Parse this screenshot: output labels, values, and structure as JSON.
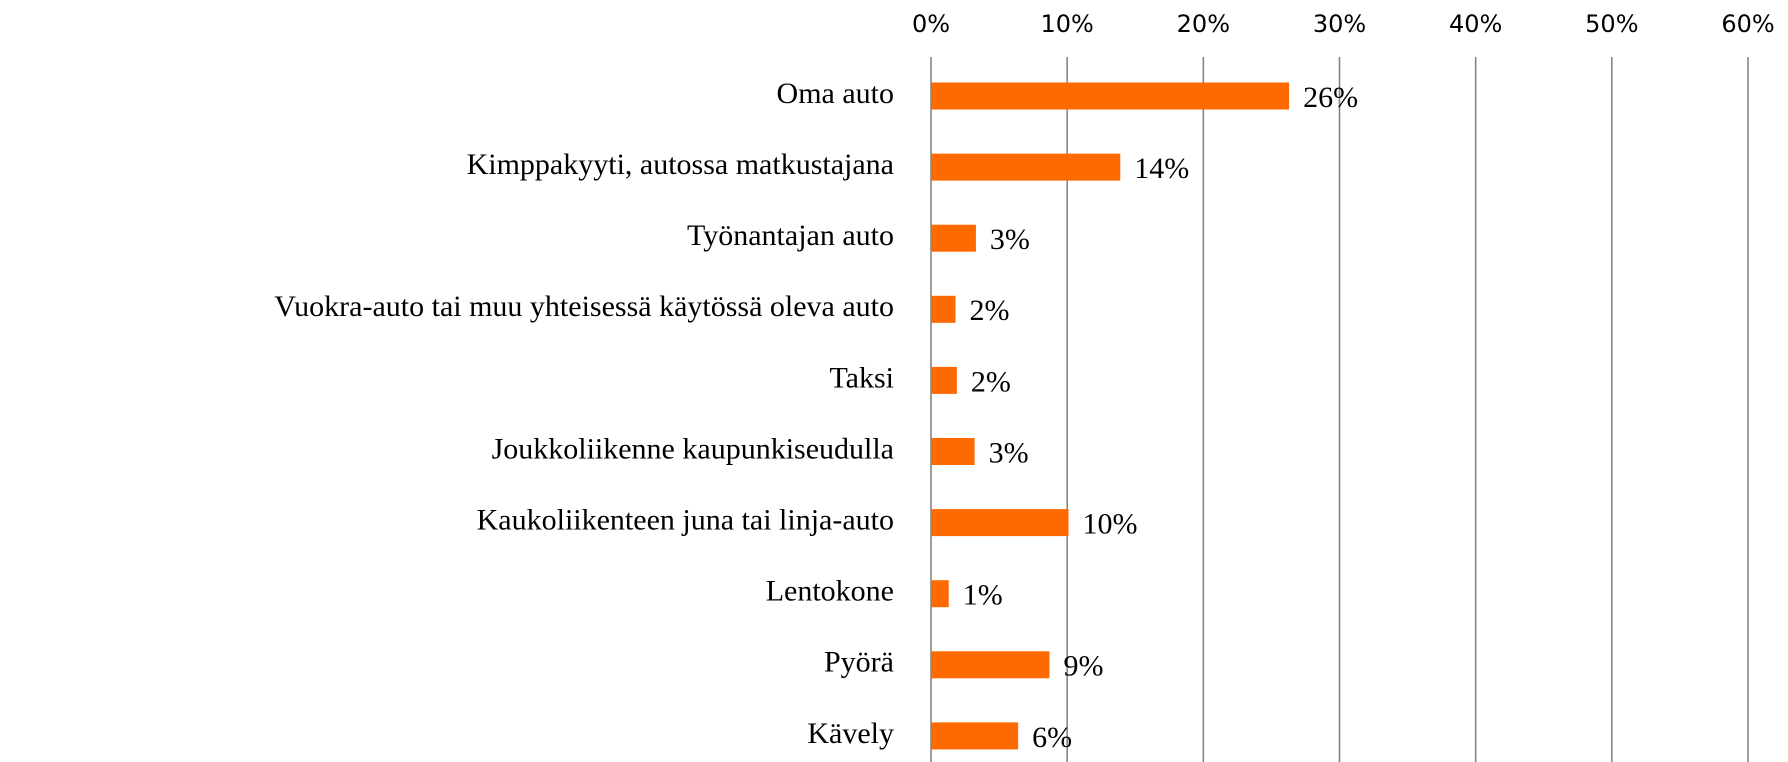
{
  "chart_data": {
    "type": "barh",
    "categories": [
      "Oma auto",
      "Kimppakyyti, autossa matkustajana",
      "Työnantajan auto",
      "Vuokra-auto tai muu yhteisessä käytössä oleva auto",
      "Taksi",
      "Joukkoliikenne kaupunkiseudulla",
      "Kaukoliikenteen juna tai linja-auto",
      "Lentokone",
      "Pyörä",
      "Kävely"
    ],
    "values": [
      26.3,
      13.9,
      3.3,
      1.8,
      1.9,
      3.2,
      10.1,
      1.3,
      8.7,
      6.4
    ],
    "value_labels": [
      "26%",
      "14%",
      "3%",
      "2%",
      "2%",
      "3%",
      "10%",
      "1%",
      "9%",
      "6%"
    ],
    "color": "#ff6a00",
    "xlim": [
      0,
      60
    ],
    "xticks": [
      {
        "value": 0,
        "label": "0%"
      },
      {
        "value": 10,
        "label": "10%"
      },
      {
        "value": 20,
        "label": "20%"
      },
      {
        "value": 30,
        "label": "30%"
      },
      {
        "value": 40,
        "label": "40%"
      },
      {
        "value": 50,
        "label": "50%"
      },
      {
        "value": 60,
        "label": "60%"
      }
    ],
    "grid": true
  }
}
